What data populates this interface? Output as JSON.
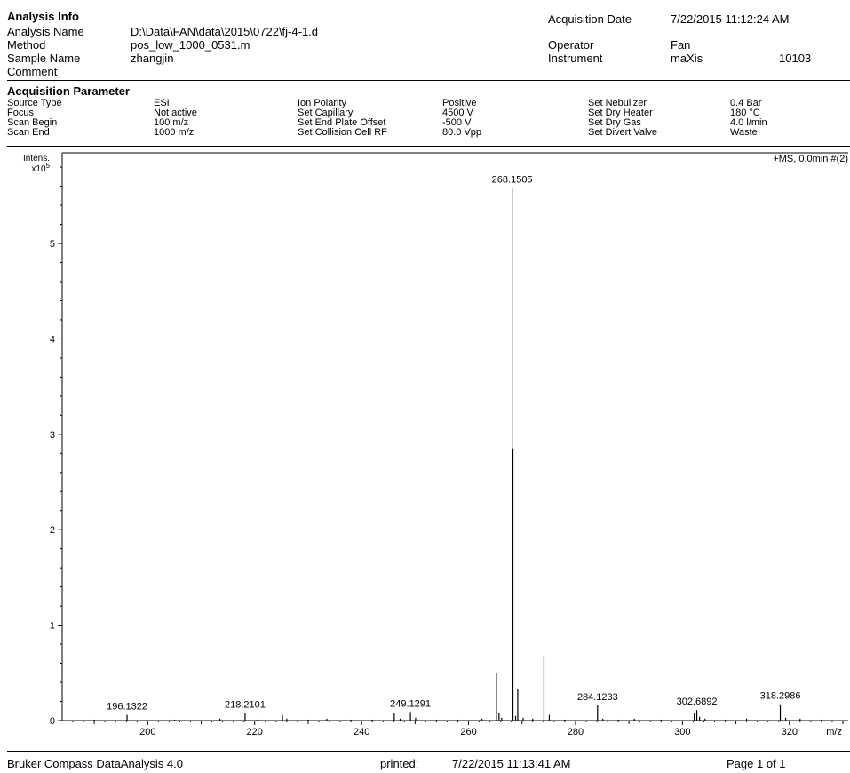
{
  "header": {
    "section_title": "Analysis Info",
    "rows": [
      {
        "label": "Analysis Name",
        "value": "D:\\Data\\FAN\\data\\2015\\0722\\fj-4-1.d"
      },
      {
        "label": "Method",
        "value": "pos_low_1000_0531.m"
      },
      {
        "label": "Sample Name",
        "value": "zhangjin"
      },
      {
        "label": "Comment",
        "value": ""
      }
    ],
    "acq_date_label": "Acquisition Date",
    "acq_date_value": "7/22/2015 11:12:24 AM",
    "operator_label": "Operator",
    "operator_value": "Fan",
    "instrument_label": "Instrument",
    "instrument_value": "maXis",
    "instrument_id": "10103"
  },
  "params": {
    "section_title": "Acquisition Parameter",
    "col1": [
      {
        "label": "Source Type",
        "value": "ESI"
      },
      {
        "label": "Focus",
        "value": "Not active"
      },
      {
        "label": "Scan Begin",
        "value": "100 m/z"
      },
      {
        "label": "Scan End",
        "value": "1000 m/z"
      }
    ],
    "col2": [
      {
        "label": "Ion Polarity",
        "value": "Positive"
      },
      {
        "label": "Set Capillary",
        "value": "4500 V"
      },
      {
        "label": "Set End Plate Offset",
        "value": "-500 V"
      },
      {
        "label": "Set Collision Cell RF",
        "value": "80.0 Vpp"
      }
    ],
    "col3": [
      {
        "label": "Set Nebulizer",
        "value": "0.4 Bar"
      },
      {
        "label": "Set Dry Heater",
        "value": "180 °C"
      },
      {
        "label": "Set Dry Gas",
        "value": "4.0 l/min"
      },
      {
        "label": "Set Divert Valve",
        "value": "Waste"
      }
    ]
  },
  "chart_data": {
    "type": "bar",
    "title": "+MS, 0.0min #(2)",
    "xlabel": "m/z",
    "ylabel": "Intens.",
    "y_multiplier": "x10",
    "y_exponent": "5",
    "xlim": [
      184,
      331
    ],
    "ylim": [
      0,
      5.95
    ],
    "x_ticks": [
      200,
      220,
      240,
      260,
      280,
      300,
      320
    ],
    "y_ticks": [
      0,
      1,
      2,
      3,
      4,
      5
    ],
    "peak_labels": [
      {
        "text": "196.1322",
        "x": 196.1322,
        "y": 0.06
      },
      {
        "text": "218.2101",
        "x": 218.2101,
        "y": 0.08
      },
      {
        "text": "249.1291",
        "x": 249.1291,
        "y": 0.09
      },
      {
        "text": "268.1505",
        "x": 268.1505,
        "y": 5.58
      },
      {
        "text": "284.1233",
        "x": 284.1233,
        "y": 0.16
      },
      {
        "text": "302.6892",
        "x": 302.6892,
        "y": 0.11
      },
      {
        "text": "318.2986",
        "x": 318.2986,
        "y": 0.17
      }
    ],
    "peaks": [
      {
        "x": 190.0,
        "y": 0.01
      },
      {
        "x": 196.1322,
        "y": 0.06
      },
      {
        "x": 205.0,
        "y": 0.01
      },
      {
        "x": 213.5,
        "y": 0.02
      },
      {
        "x": 218.2101,
        "y": 0.08
      },
      {
        "x": 220.5,
        "y": 0.01
      },
      {
        "x": 225.2,
        "y": 0.06
      },
      {
        "x": 226.0,
        "y": 0.02
      },
      {
        "x": 230.0,
        "y": 0.01
      },
      {
        "x": 233.5,
        "y": 0.02
      },
      {
        "x": 238.0,
        "y": 0.01
      },
      {
        "x": 242.0,
        "y": 0.01
      },
      {
        "x": 246.1,
        "y": 0.08
      },
      {
        "x": 247.2,
        "y": 0.02
      },
      {
        "x": 249.1291,
        "y": 0.09
      },
      {
        "x": 250.1,
        "y": 0.03
      },
      {
        "x": 254.0,
        "y": 0.01
      },
      {
        "x": 258.0,
        "y": 0.01
      },
      {
        "x": 262.5,
        "y": 0.02
      },
      {
        "x": 265.2,
        "y": 0.5
      },
      {
        "x": 265.7,
        "y": 0.08
      },
      {
        "x": 266.2,
        "y": 0.03
      },
      {
        "x": 268.1505,
        "y": 5.58
      },
      {
        "x": 268.3,
        "y": 2.85
      },
      {
        "x": 268.8,
        "y": 0.05
      },
      {
        "x": 269.2,
        "y": 0.33
      },
      {
        "x": 270.2,
        "y": 0.03
      },
      {
        "x": 272.0,
        "y": 0.02
      },
      {
        "x": 274.1,
        "y": 0.68
      },
      {
        "x": 275.1,
        "y": 0.06
      },
      {
        "x": 278.0,
        "y": 0.01
      },
      {
        "x": 284.1233,
        "y": 0.16
      },
      {
        "x": 285.1,
        "y": 0.02
      },
      {
        "x": 288.0,
        "y": 0.01
      },
      {
        "x": 291.0,
        "y": 0.02
      },
      {
        "x": 296.0,
        "y": 0.01
      },
      {
        "x": 302.2,
        "y": 0.08
      },
      {
        "x": 302.6892,
        "y": 0.11
      },
      {
        "x": 303.2,
        "y": 0.04
      },
      {
        "x": 304.2,
        "y": 0.02
      },
      {
        "x": 308.0,
        "y": 0.01
      },
      {
        "x": 312.0,
        "y": 0.02
      },
      {
        "x": 318.2986,
        "y": 0.17
      },
      {
        "x": 319.3,
        "y": 0.03
      },
      {
        "x": 322.0,
        "y": 0.02
      },
      {
        "x": 326.0,
        "y": 0.01
      }
    ]
  },
  "footer": {
    "software": "Bruker Compass DataAnalysis 4.0",
    "printed_label": "printed:",
    "printed_value": "7/22/2015 11:13:41 AM",
    "page": "Page 1 of 1"
  }
}
